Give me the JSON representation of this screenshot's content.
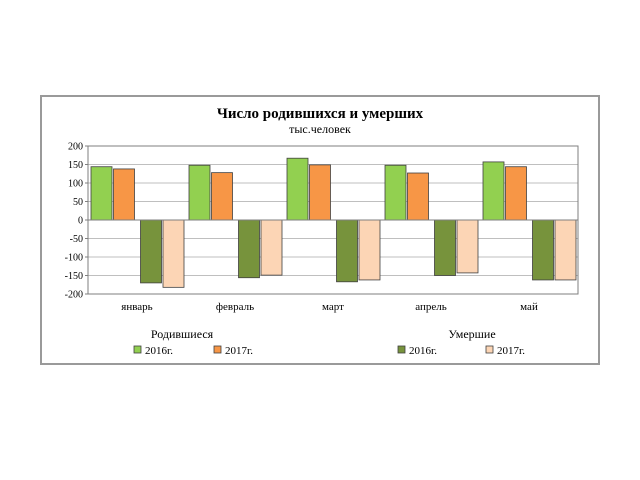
{
  "chart_data": {
    "type": "bar",
    "title": "Число родившихся и умерших",
    "subtitle": "тыс.человек",
    "categories": [
      "январь",
      "февраль",
      "март",
      "апрель",
      "май"
    ],
    "ylim": [
      -200,
      200
    ],
    "yticks": [
      "200",
      "150",
      "100",
      "50",
      "0",
      "-50",
      "-100",
      "-150",
      "-200"
    ],
    "grid": true,
    "legend_groups": [
      {
        "heading": "Родившиеся",
        "entries": [
          "2016г.",
          "2017г."
        ]
      },
      {
        "heading": "Умершие",
        "entries": [
          "2016г.",
          "2017г."
        ]
      }
    ],
    "series": [
      {
        "name": "2016г.",
        "group": "Родившиеся",
        "color": "#92d050",
        "values": [
          144,
          148,
          167,
          148,
          157
        ]
      },
      {
        "name": "2017г.",
        "group": "Родившиеся",
        "color": "#f79646",
        "values": [
          138,
          128,
          149,
          127,
          144
        ]
      },
      {
        "name": "2016г.",
        "group": "Умершие",
        "color": "#77933c",
        "values": [
          -170,
          -156,
          -167,
          -150,
          -162
        ]
      },
      {
        "name": "2017г.",
        "group": "Умершие",
        "color": "#fcd5b5",
        "values": [
          -182,
          -149,
          -162,
          -143,
          -162
        ]
      }
    ]
  }
}
